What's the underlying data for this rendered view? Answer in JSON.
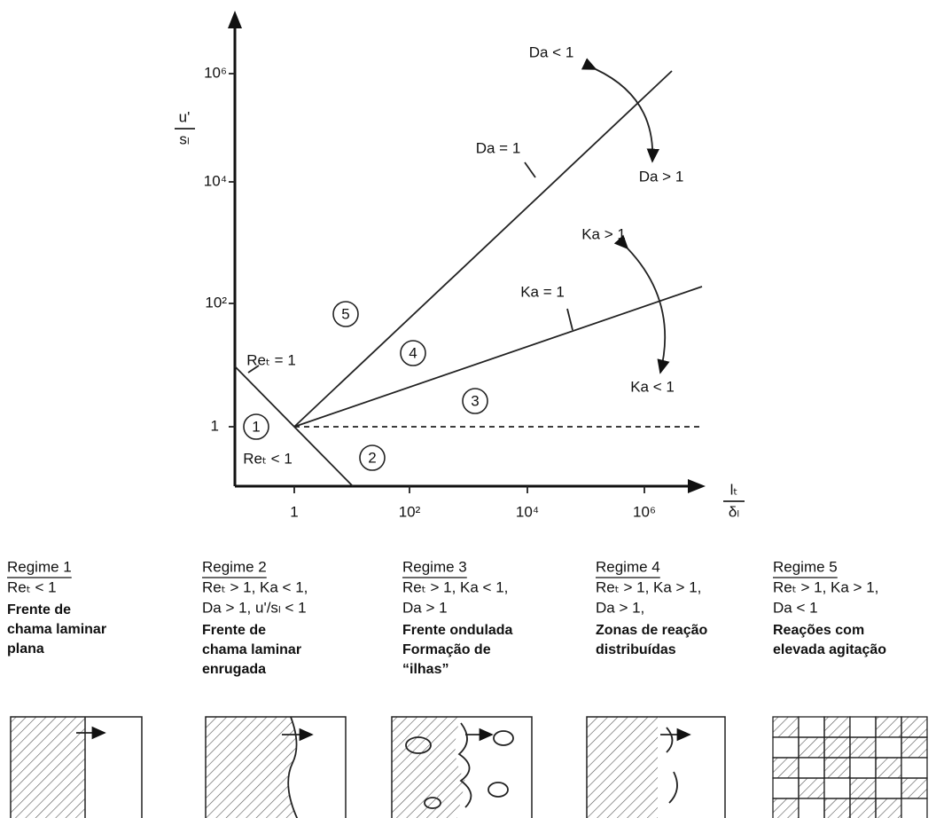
{
  "diagram": {
    "y_axis": {
      "numerator": "u'",
      "denominator": "sₗ",
      "ticks": [
        "1",
        "10²",
        "10⁴",
        "10⁶"
      ]
    },
    "x_axis": {
      "numerator": "lₜ",
      "denominator": "δₗ",
      "ticks": [
        "1",
        "10²",
        "10⁴",
        "10⁶"
      ]
    },
    "line_labels": [
      "Da < 1",
      "Da = 1",
      "Da > 1",
      "Ka > 1",
      "Ka = 1",
      "Ka < 1",
      "Reₜ = 1",
      "Reₜ < 1"
    ],
    "regions": [
      "1",
      "2",
      "3",
      "4",
      "5"
    ]
  },
  "regimes": [
    {
      "title": "Regime 1",
      "conditions": [
        "Reₜ < 1"
      ],
      "description": [
        "Frente de",
        "chama laminar",
        "plana"
      ]
    },
    {
      "title": "Regime 2",
      "conditions": [
        "Reₜ > 1, Ka < 1,",
        "Da > 1, u'/sₗ < 1"
      ],
      "description": [
        "Frente de",
        "chama laminar",
        "enrugada"
      ]
    },
    {
      "title": "Regime 3",
      "conditions": [
        "Reₜ > 1, Ka < 1,",
        "Da > 1"
      ],
      "description": [
        "Frente ondulada",
        "Formação de",
        "“ilhas”"
      ]
    },
    {
      "title": "Regime 4",
      "conditions": [
        "Reₜ > 1, Ka > 1,",
        "Da > 1,"
      ],
      "description": [
        "Zonas de reação",
        "distribuídas"
      ]
    },
    {
      "title": "Regime 5",
      "conditions": [
        "Reₜ > 1, Ka > 1,",
        "Da < 1"
      ],
      "description": [
        "Reações com",
        "elevada agitação"
      ]
    }
  ]
}
